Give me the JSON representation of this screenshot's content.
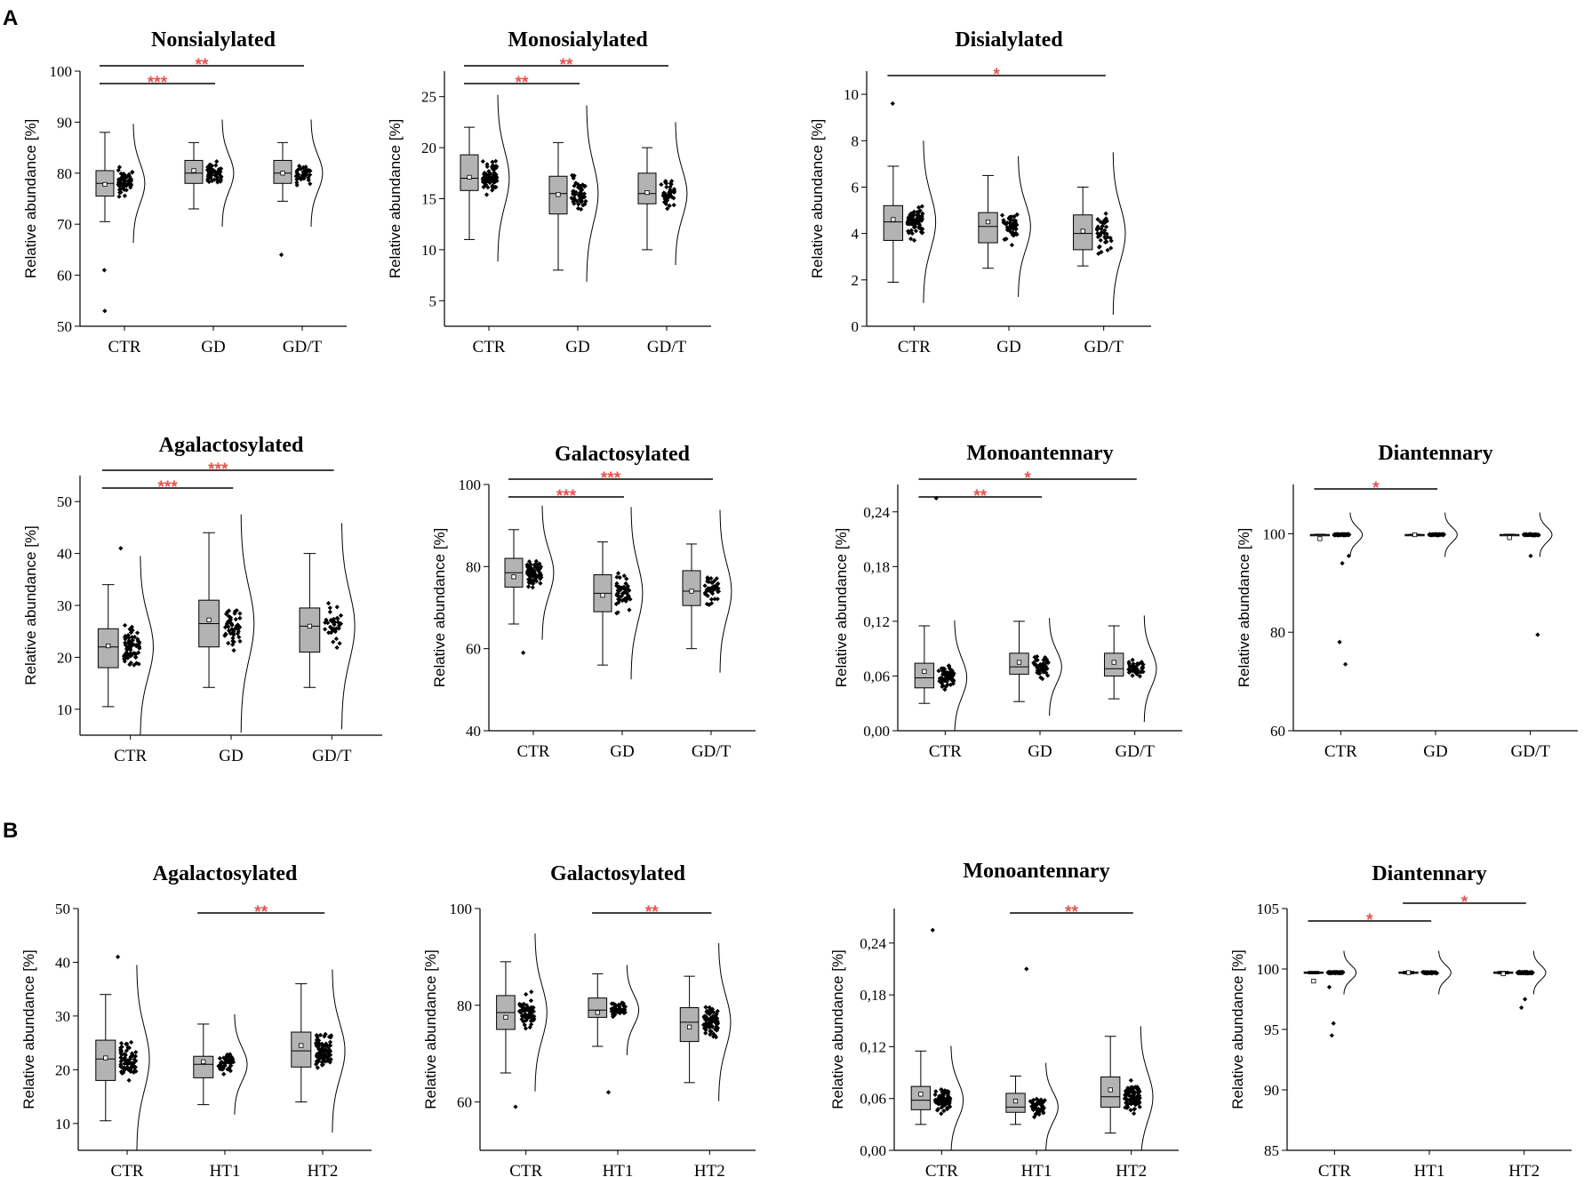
{
  "panel_labels": [
    "A",
    "B"
  ],
  "chart_data": [
    {
      "id": "A-nonsialylated",
      "section": "A",
      "type": "box",
      "title": "Nonsialylated",
      "ylabel": "Relative abundance [%]",
      "categories": [
        "CTR",
        "GD",
        "GD/T"
      ],
      "ylim": [
        50,
        100
      ],
      "yticks": [
        50,
        60,
        70,
        80,
        90,
        100
      ],
      "ytick_labels": [
        "50",
        "60",
        "70",
        "80",
        "90",
        "100"
      ],
      "boxes": [
        {
          "whislo": 70.5,
          "q1": 75.5,
          "med": 78,
          "q3": 80.5,
          "whishi": 88,
          "mean": 77.8
        },
        {
          "whislo": 73,
          "q1": 78,
          "med": 80,
          "q3": 82.5,
          "whishi": 86,
          "mean": 80.5
        },
        {
          "whislo": 74.5,
          "q1": 78,
          "med": 80,
          "q3": 82.5,
          "whishi": 86,
          "mean": 80
        }
      ],
      "outliers": [
        [
          61,
          53
        ],
        [],
        [
          64
        ]
      ],
      "n_points": [
        70,
        50,
        38
      ],
      "significance": [
        {
          "from": 0,
          "to": 1,
          "label": "***"
        },
        {
          "from": 0,
          "to": 2,
          "label": "**"
        }
      ]
    },
    {
      "id": "A-monosialylated",
      "section": "A",
      "type": "box",
      "title": "Monosialylated",
      "ylabel": "Relative abundance [%]",
      "categories": [
        "CTR",
        "GD",
        "GD/T"
      ],
      "ylim": [
        2.5,
        27.5
      ],
      "yticks": [
        5,
        10,
        15,
        20,
        25
      ],
      "ytick_labels": [
        "5",
        "10",
        "15",
        "20",
        "25"
      ],
      "boxes": [
        {
          "whislo": 11,
          "q1": 15.8,
          "med": 17,
          "q3": 19.3,
          "whishi": 22,
          "mean": 17.1
        },
        {
          "whislo": 8,
          "q1": 13.5,
          "med": 15.5,
          "q3": 17.2,
          "whishi": 20.5,
          "mean": 15.4
        },
        {
          "whislo": 10,
          "q1": 14.5,
          "med": 15.5,
          "q3": 17.5,
          "whishi": 20,
          "mean": 15.6
        }
      ],
      "outliers": [
        [],
        [],
        []
      ],
      "n_points": [
        70,
        50,
        38
      ],
      "significance": [
        {
          "from": 0,
          "to": 1,
          "label": "**"
        },
        {
          "from": 0,
          "to": 2,
          "label": "**"
        }
      ]
    },
    {
      "id": "A-disialylated",
      "section": "A",
      "type": "box",
      "title": "Disialylated",
      "ylabel": "Relative abundance [%]",
      "categories": [
        "CTR",
        "GD",
        "GD/T"
      ],
      "ylim": [
        0,
        11
      ],
      "yticks": [
        0,
        2,
        4,
        6,
        8,
        10
      ],
      "ytick_labels": [
        "0",
        "2",
        "4",
        "6",
        "8",
        "10"
      ],
      "boxes": [
        {
          "whislo": 1.9,
          "q1": 3.7,
          "med": 4.5,
          "q3": 5.2,
          "whishi": 6.9,
          "mean": 4.6
        },
        {
          "whislo": 2.5,
          "q1": 3.6,
          "med": 4.3,
          "q3": 4.9,
          "whishi": 6.5,
          "mean": 4.5
        },
        {
          "whislo": 2.6,
          "q1": 3.3,
          "med": 4,
          "q3": 4.8,
          "whishi": 6,
          "mean": 4.1
        }
      ],
      "outliers": [
        [
          9.6
        ],
        [],
        []
      ],
      "n_points": [
        70,
        50,
        38
      ],
      "significance": [
        {
          "from": 0,
          "to": 2,
          "label": "*"
        }
      ]
    },
    {
      "id": "A-agalactosylated",
      "section": "A",
      "type": "box",
      "title": "Agalactosylated",
      "ylabel": "Relative abundance [%]",
      "categories": [
        "CTR",
        "GD",
        "GD/T"
      ],
      "ylim": [
        5,
        55
      ],
      "yticks": [
        10,
        20,
        30,
        40,
        50
      ],
      "ytick_labels": [
        "10",
        "20",
        "30",
        "40",
        "50"
      ],
      "boxes": [
        {
          "whislo": 10.5,
          "q1": 18,
          "med": 22,
          "q3": 25.5,
          "whishi": 34,
          "mean": 22.2
        },
        {
          "whislo": 14.2,
          "q1": 22,
          "med": 26.5,
          "q3": 31,
          "whishi": 44,
          "mean": 27.2
        },
        {
          "whislo": 14.2,
          "q1": 21,
          "med": 26,
          "q3": 29.5,
          "whishi": 40,
          "mean": 26
        }
      ],
      "outliers": [
        [
          41
        ],
        [],
        []
      ],
      "n_points": [
        70,
        50,
        38
      ],
      "significance": [
        {
          "from": 0,
          "to": 1,
          "label": "***"
        },
        {
          "from": 0,
          "to": 2,
          "label": "***"
        }
      ]
    },
    {
      "id": "A-galactosylated",
      "section": "A",
      "type": "box",
      "title": "Galactosylated",
      "ylabel": "Relative abundance [%]",
      "categories": [
        "CTR",
        "GD",
        "GD/T"
      ],
      "ylim": [
        40,
        100
      ],
      "yticks": [
        40,
        60,
        80,
        100
      ],
      "ytick_labels": [
        "40",
        "60",
        "80",
        "100"
      ],
      "boxes": [
        {
          "whislo": 66,
          "q1": 75,
          "med": 78.5,
          "q3": 82,
          "whishi": 89,
          "mean": 77.5
        },
        {
          "whislo": 56,
          "q1": 69,
          "med": 73.5,
          "q3": 78,
          "whishi": 86,
          "mean": 73
        },
        {
          "whislo": 60,
          "q1": 70.5,
          "med": 74,
          "q3": 79,
          "whishi": 85.5,
          "mean": 74
        }
      ],
      "outliers": [
        [
          59
        ],
        [],
        []
      ],
      "n_points": [
        70,
        50,
        38
      ],
      "significance": [
        {
          "from": 0,
          "to": 1,
          "label": "***"
        },
        {
          "from": 0,
          "to": 2,
          "label": "***"
        }
      ]
    },
    {
      "id": "A-monoantennary",
      "section": "A",
      "type": "box",
      "title": "Monoantennary",
      "ylabel": "Relative abundance [%]",
      "categories": [
        "CTR",
        "GD",
        "GD/T"
      ],
      "ylim": [
        0,
        0.27
      ],
      "yticks": [
        0,
        0.06,
        0.12,
        0.18,
        0.24
      ],
      "ytick_labels": [
        "0,00",
        "0,06",
        "0,12",
        "0,18",
        "0,24"
      ],
      "boxes": [
        {
          "whislo": 0.03,
          "q1": 0.047,
          "med": 0.058,
          "q3": 0.074,
          "whishi": 0.115,
          "mean": 0.065
        },
        {
          "whislo": 0.032,
          "q1": 0.062,
          "med": 0.07,
          "q3": 0.085,
          "whishi": 0.12,
          "mean": 0.075
        },
        {
          "whislo": 0.035,
          "q1": 0.06,
          "med": 0.068,
          "q3": 0.085,
          "whishi": 0.115,
          "mean": 0.075
        }
      ],
      "outliers": [
        [
          0.255
        ],
        [],
        []
      ],
      "n_points": [
        70,
        50,
        38
      ],
      "significance": [
        {
          "from": 0,
          "to": 1,
          "label": "**"
        },
        {
          "from": 0,
          "to": 2,
          "label": "*"
        }
      ]
    },
    {
      "id": "A-diantennary",
      "section": "A",
      "type": "box",
      "title": "Diantennary",
      "ylabel": "Relative abundance [%]",
      "categories": [
        "CTR",
        "GD",
        "GD/T"
      ],
      "ylim": [
        60,
        110
      ],
      "yticks": [
        60,
        80,
        100
      ],
      "ytick_labels": [
        "60",
        "80",
        "100"
      ],
      "boxes": [
        {
          "whislo": 99.7,
          "q1": 99.75,
          "med": 99.8,
          "q3": 99.85,
          "whishi": 99.9,
          "mean": 99
        },
        {
          "whislo": 99.7,
          "q1": 99.75,
          "med": 99.8,
          "q3": 99.85,
          "whishi": 99.9,
          "mean": 99.8
        },
        {
          "whislo": 99.7,
          "q1": 99.75,
          "med": 99.8,
          "q3": 99.85,
          "whishi": 99.9,
          "mean": 99.2
        }
      ],
      "outliers": [
        [
          78,
          73.5,
          95.5,
          94
        ],
        [],
        [
          79.5,
          95.5
        ]
      ],
      "n_points": [
        70,
        50,
        38
      ],
      "significance": [
        {
          "from": 0,
          "to": 1,
          "label": "*"
        }
      ]
    },
    {
      "id": "B-agalactosylated",
      "section": "B",
      "type": "box",
      "title": "Agalactosylated",
      "ylabel": "Relative abundance [%]",
      "categories": [
        "CTR",
        "HT1",
        "HT2"
      ],
      "ylim": [
        5,
        50
      ],
      "yticks": [
        10,
        20,
        30,
        40,
        50
      ],
      "ytick_labels": [
        "10",
        "20",
        "30",
        "40",
        "50"
      ],
      "boxes": [
        {
          "whislo": 10.5,
          "q1": 18,
          "med": 22,
          "q3": 25.5,
          "whishi": 34,
          "mean": 22.2
        },
        {
          "whislo": 13.5,
          "q1": 18.5,
          "med": 21,
          "q3": 22.5,
          "whishi": 28.5,
          "mean": 21.5
        },
        {
          "whislo": 14,
          "q1": 20.5,
          "med": 23.5,
          "q3": 27,
          "whishi": 36,
          "mean": 24.5
        }
      ],
      "outliers": [
        [
          41
        ],
        [],
        []
      ],
      "n_points": [
        70,
        45,
        85
      ],
      "significance": [
        {
          "from": 1,
          "to": 2,
          "label": "**"
        }
      ]
    },
    {
      "id": "B-galactosylated",
      "section": "B",
      "type": "box",
      "title": "Galactosylated",
      "ylabel": "Relative abundance [%]",
      "categories": [
        "CTR",
        "HT1",
        "HT2"
      ],
      "ylim": [
        50,
        100
      ],
      "yticks": [
        60,
        80,
        100
      ],
      "ytick_labels": [
        "60",
        "80",
        "100"
      ],
      "boxes": [
        {
          "whislo": 66,
          "q1": 75,
          "med": 78.5,
          "q3": 82,
          "whishi": 89,
          "mean": 77.5
        },
        {
          "whislo": 71.5,
          "q1": 77.5,
          "med": 79,
          "q3": 81.5,
          "whishi": 86.5,
          "mean": 78.5
        },
        {
          "whislo": 64,
          "q1": 72.5,
          "med": 76.5,
          "q3": 79.5,
          "whishi": 86,
          "mean": 75.5
        }
      ],
      "outliers": [
        [
          59
        ],
        [
          62
        ],
        []
      ],
      "n_points": [
        70,
        45,
        85
      ],
      "significance": [
        {
          "from": 1,
          "to": 2,
          "label": "**"
        }
      ]
    },
    {
      "id": "B-monoantennary",
      "section": "B",
      "type": "box",
      "title": "Monoantennary",
      "ylabel": "Relative abundance [%]",
      "categories": [
        "CTR",
        "HT1",
        "HT2"
      ],
      "ylim": [
        0,
        0.28
      ],
      "yticks": [
        0,
        0.06,
        0.12,
        0.18,
        0.24
      ],
      "ytick_labels": [
        "0,00",
        "0,06",
        "0,12",
        "0,18",
        "0,24"
      ],
      "boxes": [
        {
          "whislo": 0.03,
          "q1": 0.047,
          "med": 0.058,
          "q3": 0.074,
          "whishi": 0.115,
          "mean": 0.065
        },
        {
          "whislo": 0.03,
          "q1": 0.044,
          "med": 0.05,
          "q3": 0.066,
          "whishi": 0.086,
          "mean": 0.057
        },
        {
          "whislo": 0.02,
          "q1": 0.05,
          "med": 0.062,
          "q3": 0.085,
          "whishi": 0.132,
          "mean": 0.07
        }
      ],
      "outliers": [
        [
          0.255
        ],
        [
          0.21
        ],
        []
      ],
      "n_points": [
        70,
        45,
        85
      ],
      "significance": [
        {
          "from": 1,
          "to": 2,
          "label": "**"
        }
      ]
    },
    {
      "id": "B-diantennary",
      "section": "B",
      "type": "box",
      "title": "Diantennary",
      "ylabel": "Relative abundance [%]",
      "categories": [
        "CTR",
        "HT1",
        "HT2"
      ],
      "ylim": [
        85,
        105
      ],
      "yticks": [
        85,
        90,
        95,
        100,
        105
      ],
      "ytick_labels": [
        "85",
        "90",
        "95",
        "100",
        "105"
      ],
      "boxes": [
        {
          "whislo": 99.6,
          "q1": 99.65,
          "med": 99.7,
          "q3": 99.75,
          "whishi": 99.8,
          "mean": 99
        },
        {
          "whislo": 99.6,
          "q1": 99.65,
          "med": 99.7,
          "q3": 99.75,
          "whishi": 99.8,
          "mean": 99.7
        },
        {
          "whislo": 99.6,
          "q1": 99.65,
          "med": 99.7,
          "q3": 99.75,
          "whishi": 99.8,
          "mean": 99.6
        }
      ],
      "outliers": [
        [
          95.5,
          94.5,
          98.5
        ],
        [],
        [
          97.5,
          96.8
        ]
      ],
      "n_points": [
        70,
        45,
        85
      ],
      "significance": [
        {
          "from": 0,
          "to": 1,
          "label": "*"
        },
        {
          "from": 1,
          "to": 2,
          "label": "*"
        }
      ]
    }
  ]
}
